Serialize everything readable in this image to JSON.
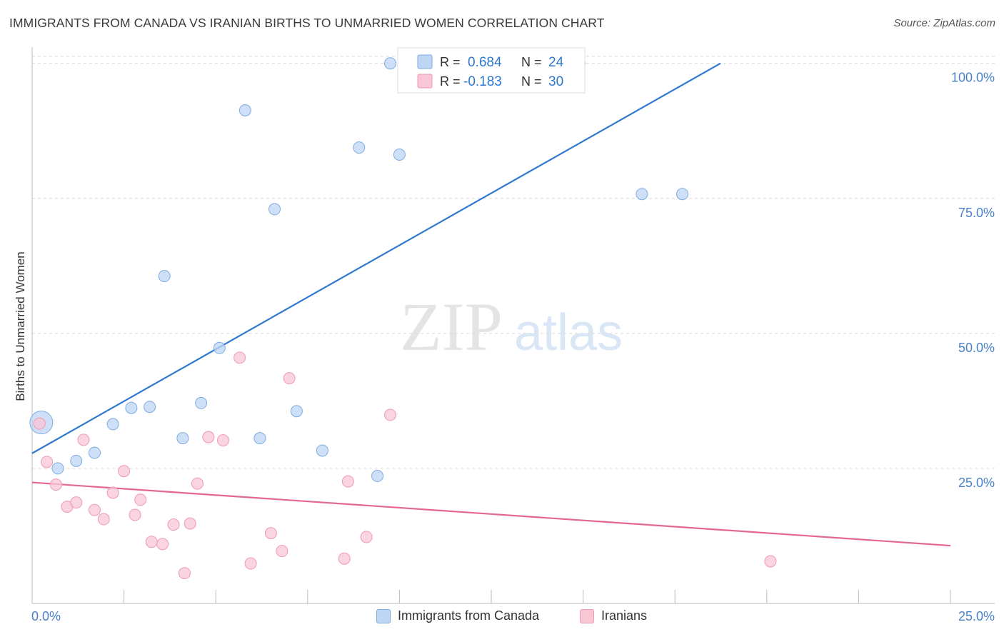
{
  "header": {
    "title": "IMMIGRANTS FROM CANADA VS IRANIAN BIRTHS TO UNMARRIED WOMEN CORRELATION CHART",
    "source": "Source: ZipAtlas.com"
  },
  "watermark": {
    "zip": "ZIP",
    "atlas": "atlas"
  },
  "colors": {
    "blue_fill": "#bcd6f4",
    "blue_stroke": "#7fabdf",
    "blue_line": "#2e78d0",
    "pink_fill": "#f8c6d5",
    "pink_stroke": "#ee9ab4",
    "pink_line": "#e4678f",
    "axis_text": "#4a82c8",
    "grid": "#d9d9d9"
  },
  "legend": {
    "rows": [
      {
        "r_label": "R =",
        "r_value": "0.684",
        "n_label": "N =",
        "n_value": "24"
      },
      {
        "r_label": "R =",
        "r_value": "-0.183",
        "n_label": "N =",
        "n_value": "30"
      }
    ]
  },
  "chart_data": {
    "type": "scatter",
    "title": "IMMIGRANTS FROM CANADA VS IRANIAN BIRTHS TO UNMARRIED WOMEN CORRELATION CHART",
    "xlabel": "",
    "ylabel": "Births to Unmarried Women",
    "xlim": [
      0,
      25
    ],
    "ylim": [
      0,
      103
    ],
    "x_tick_labels": [
      "0.0%",
      "25.0%"
    ],
    "y_ticks": [
      25,
      50,
      75,
      100
    ],
    "y_tick_labels": [
      "25.0%",
      "50.0%",
      "75.0%",
      "100.0%"
    ],
    "grid": true,
    "legend_position": "top-center",
    "series": [
      {
        "name": "Immigrants from Canada",
        "r": 0.684,
        "n": 24,
        "trend": {
          "x": [
            0,
            18.74
          ],
          "y": [
            27.8,
            100.0
          ]
        },
        "points": [
          {
            "x": 0.25,
            "y": 33.5,
            "big": true
          },
          {
            "x": 0.7,
            "y": 25.0
          },
          {
            "x": 1.2,
            "y": 26.4
          },
          {
            "x": 1.7,
            "y": 27.9
          },
          {
            "x": 2.2,
            "y": 33.2
          },
          {
            "x": 2.7,
            "y": 36.2
          },
          {
            "x": 3.2,
            "y": 36.4
          },
          {
            "x": 3.6,
            "y": 60.6
          },
          {
            "x": 4.1,
            "y": 30.6
          },
          {
            "x": 4.6,
            "y": 37.1
          },
          {
            "x": 5.1,
            "y": 47.3
          },
          {
            "x": 5.8,
            "y": 91.3
          },
          {
            "x": 6.2,
            "y": 30.6
          },
          {
            "x": 6.6,
            "y": 73.0
          },
          {
            "x": 7.2,
            "y": 35.6
          },
          {
            "x": 7.9,
            "y": 28.3
          },
          {
            "x": 8.9,
            "y": 84.4
          },
          {
            "x": 9.4,
            "y": 23.6
          },
          {
            "x": 9.75,
            "y": 100.0
          },
          {
            "x": 10.0,
            "y": 83.1
          },
          {
            "x": 13.0,
            "y": 100.0
          },
          {
            "x": 14.9,
            "y": 100.0
          },
          {
            "x": 16.6,
            "y": 75.8
          },
          {
            "x": 17.7,
            "y": 75.8
          }
        ]
      },
      {
        "name": "Iranians",
        "r": -0.183,
        "n": 30,
        "trend": {
          "x": [
            0,
            25
          ],
          "y": [
            22.4,
            10.7
          ]
        },
        "points": [
          {
            "x": 0.2,
            "y": 33.3
          },
          {
            "x": 0.4,
            "y": 26.2
          },
          {
            "x": 0.65,
            "y": 22.0
          },
          {
            "x": 0.95,
            "y": 17.9
          },
          {
            "x": 1.2,
            "y": 18.7
          },
          {
            "x": 1.4,
            "y": 30.3
          },
          {
            "x": 1.7,
            "y": 17.3
          },
          {
            "x": 1.95,
            "y": 15.6
          },
          {
            "x": 2.2,
            "y": 20.5
          },
          {
            "x": 2.5,
            "y": 24.5
          },
          {
            "x": 2.8,
            "y": 16.4
          },
          {
            "x": 2.95,
            "y": 19.2
          },
          {
            "x": 3.25,
            "y": 11.4
          },
          {
            "x": 3.55,
            "y": 11.0
          },
          {
            "x": 3.85,
            "y": 14.6
          },
          {
            "x": 4.15,
            "y": 5.6
          },
          {
            "x": 4.3,
            "y": 14.8
          },
          {
            "x": 4.5,
            "y": 22.2
          },
          {
            "x": 4.8,
            "y": 30.8
          },
          {
            "x": 5.2,
            "y": 30.2
          },
          {
            "x": 5.65,
            "y": 45.5
          },
          {
            "x": 5.95,
            "y": 7.4
          },
          {
            "x": 6.5,
            "y": 13.0
          },
          {
            "x": 6.8,
            "y": 9.7
          },
          {
            "x": 7.0,
            "y": 41.7
          },
          {
            "x": 8.5,
            "y": 8.3
          },
          {
            "x": 8.6,
            "y": 22.6
          },
          {
            "x": 9.1,
            "y": 12.3
          },
          {
            "x": 9.75,
            "y": 34.9
          },
          {
            "x": 20.1,
            "y": 7.8
          }
        ]
      }
    ]
  }
}
